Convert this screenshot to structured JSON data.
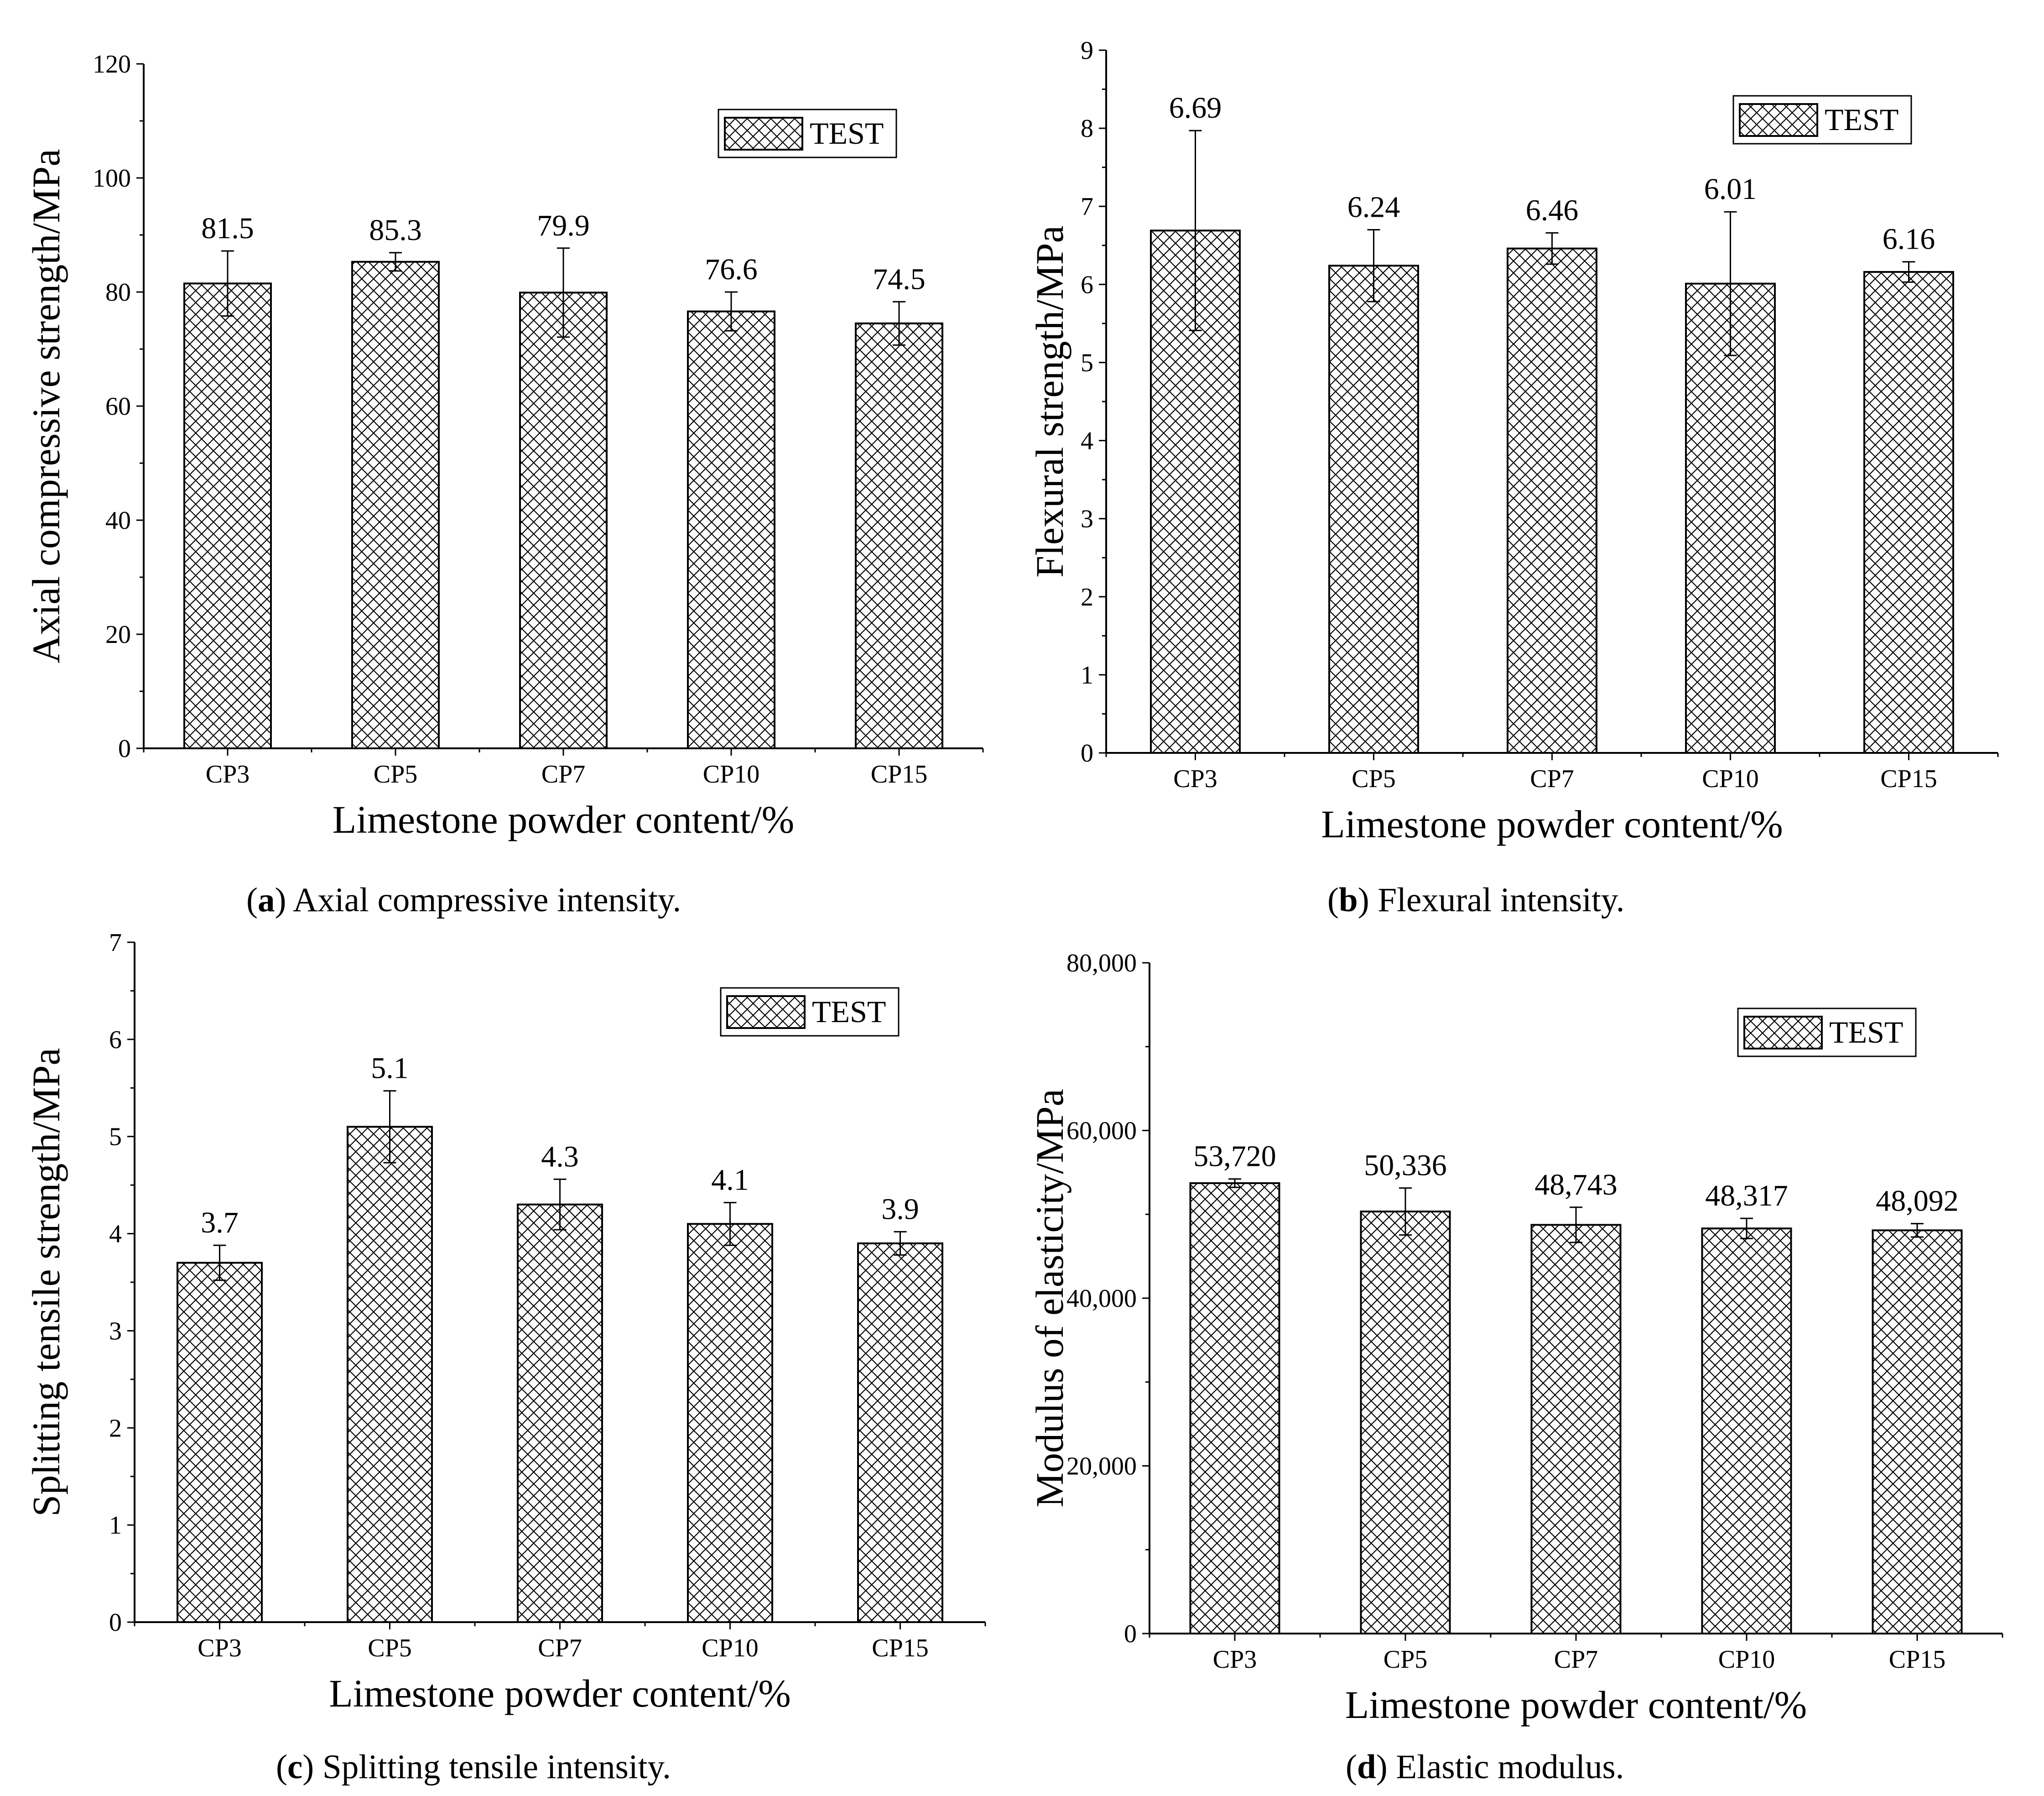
{
  "chart_data": [
    {
      "id": "a",
      "type": "bar",
      "categories": [
        "CP3",
        "CP5",
        "CP7",
        "CP10",
        "CP15"
      ],
      "series": [
        {
          "name": "TEST",
          "values": [
            81.5,
            85.3,
            79.9,
            76.6,
            74.5
          ],
          "error": [
            5.7,
            1.6,
            7.8,
            3.4,
            3.8
          ]
        }
      ],
      "data_labels": [
        "81.5",
        "85.3",
        "79.9",
        "76.6",
        "74.5"
      ],
      "ylabel": "Axial compressive strength/MPa",
      "xlabel": "Limestone powder content/%",
      "ylim": [
        0,
        120
      ],
      "yticks": [
        0,
        20,
        40,
        60,
        80,
        100,
        120
      ],
      "ytick_labels": [
        "0",
        "20",
        "40",
        "60",
        "80",
        "100",
        "120"
      ],
      "legend": {
        "label": "TEST",
        "position": "top-right"
      },
      "grid": false,
      "caption_letter": "a",
      "caption_open": "(",
      "caption_text": ") Axial compressive intensity."
    },
    {
      "id": "b",
      "type": "bar",
      "categories": [
        "CP3",
        "CP5",
        "CP7",
        "CP10",
        "CP15"
      ],
      "series": [
        {
          "name": "TEST",
          "values": [
            6.69,
            6.24,
            6.46,
            6.01,
            6.16
          ],
          "error": [
            1.28,
            0.46,
            0.2,
            0.92,
            0.13
          ]
        }
      ],
      "data_labels": [
        "6.69",
        "6.24",
        "6.46",
        "6.01",
        "6.16"
      ],
      "ylabel": "Flexural strength/MPa",
      "xlabel": "Limestone powder content/%",
      "ylim": [
        0,
        9
      ],
      "yticks": [
        0,
        1,
        2,
        3,
        4,
        5,
        6,
        7,
        8,
        9
      ],
      "ytick_labels": [
        "0",
        "1",
        "2",
        "3",
        "4",
        "5",
        "6",
        "7",
        "8",
        "9"
      ],
      "legend": {
        "label": "TEST",
        "position": "top-right"
      },
      "grid": false,
      "caption_letter": "b",
      "caption_open": "(",
      "caption_text": ") Flexural intensity."
    },
    {
      "id": "c",
      "type": "bar",
      "categories": [
        "CP3",
        "CP5",
        "CP7",
        "CP10",
        "CP15"
      ],
      "series": [
        {
          "name": "TEST",
          "values": [
            3.7,
            5.1,
            4.3,
            4.1,
            3.9
          ],
          "error": [
            0.18,
            0.37,
            0.26,
            0.22,
            0.12
          ]
        }
      ],
      "data_labels": [
        "3.7",
        "5.1",
        "4.3",
        "4.1",
        "3.9"
      ],
      "ylabel": "Splitting tensile strength/MPa",
      "xlabel": "Limestone powder content/%",
      "ylim": [
        0,
        7
      ],
      "yticks": [
        0,
        1,
        2,
        3,
        4,
        5,
        6,
        7
      ],
      "ytick_labels": [
        "0",
        "1",
        "2",
        "3",
        "4",
        "5",
        "6",
        "7"
      ],
      "legend": {
        "label": "TEST",
        "position": "top-right"
      },
      "grid": false,
      "caption_letter": "c",
      "caption_open": "(",
      "caption_text": ") Splitting tensile intensity."
    },
    {
      "id": "d",
      "type": "bar",
      "categories": [
        "CP3",
        "CP5",
        "CP7",
        "CP10",
        "CP15"
      ],
      "series": [
        {
          "name": "TEST",
          "values": [
            53720,
            50336,
            48743,
            48317,
            48092
          ],
          "error": [
            500,
            2800,
            2100,
            1200,
            800
          ]
        }
      ],
      "data_labels": [
        "53,720",
        "50,336",
        "48,743",
        "48,317",
        "48,092"
      ],
      "ylabel": "Modulus of elasticity/MPa",
      "xlabel": "Limestone powder content/%",
      "ylim": [
        0,
        80000
      ],
      "yticks": [
        0,
        20000,
        40000,
        60000,
        80000
      ],
      "ytick_labels": [
        "0",
        "20,000",
        "40,000",
        "60,000",
        "80,000"
      ],
      "legend": {
        "label": "TEST",
        "position": "top-right"
      },
      "grid": false,
      "caption_letter": "d",
      "caption_open": "(",
      "caption_text": ") Elastic modulus."
    }
  ]
}
